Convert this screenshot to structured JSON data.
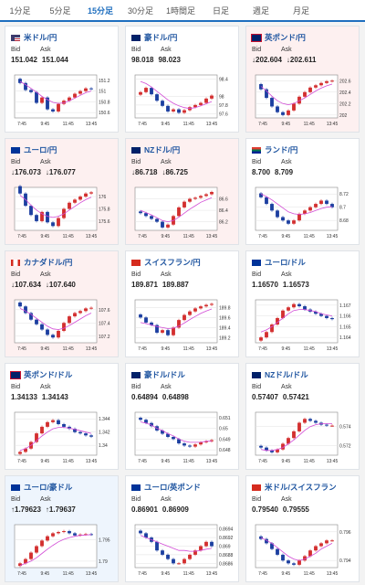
{
  "tabs": [
    {
      "label": "1分足",
      "active": false
    },
    {
      "label": "5分足",
      "active": false
    },
    {
      "label": "15分足",
      "active": true
    },
    {
      "label": "30分足",
      "active": false
    },
    {
      "label": "1時間足",
      "active": false
    },
    {
      "label": "日足",
      "active": false
    },
    {
      "label": "週足",
      "active": false
    },
    {
      "label": "月足",
      "active": false
    }
  ],
  "labels": {
    "bid": "Bid",
    "ask": "Ask"
  },
  "colors": {
    "up": "#d32f2f",
    "down": "#1c3fa0",
    "ma": "#d24bd6",
    "accent": "#1f6fbf"
  },
  "pairs": [
    {
      "title": "米ドル/円",
      "flag": "us",
      "trend": "flat",
      "bid": "151.042",
      "ask": "151.044",
      "yticks": [
        "151.2",
        "151",
        "150.8",
        "150.6"
      ],
      "ylim": [
        150.5,
        151.3
      ],
      "xticks": [
        "7:45",
        "9:45",
        "11:45",
        "13:45"
      ],
      "closes": [
        151.15,
        151.02,
        150.98,
        150.78,
        150.88,
        150.66,
        150.62,
        150.76,
        150.82,
        150.88,
        150.95,
        151.0,
        151.05,
        151.04
      ],
      "ma": [
        151.18,
        151.12,
        151.05,
        150.98,
        150.9,
        150.84,
        150.79,
        150.77,
        150.78,
        150.82,
        150.87,
        150.92,
        150.97,
        151.0
      ]
    },
    {
      "title": "豪ドル/円",
      "flag": "au",
      "trend": "flat",
      "bid": "98.018",
      "ask": "98.023",
      "yticks": [
        "98.4",
        "98",
        "97.8",
        "97.6"
      ],
      "ylim": [
        97.5,
        98.5
      ],
      "xticks": [
        "7:45",
        "9:45",
        "11:45",
        "13:45"
      ],
      "closes": [
        98.1,
        98.2,
        98.05,
        97.9,
        97.78,
        97.65,
        97.7,
        97.62,
        97.68,
        97.75,
        97.8,
        97.85,
        97.95,
        98.02
      ],
      "ma": [
        98.35,
        98.3,
        98.22,
        98.12,
        98.02,
        97.92,
        97.84,
        97.78,
        97.74,
        97.72,
        97.74,
        97.78,
        97.83,
        97.88
      ]
    },
    {
      "title": "英ポンド/円",
      "flag": "uk",
      "trend": "down",
      "bid": "↓202.604",
      "ask": "↓202.611",
      "yticks": [
        "202.6",
        "202.4",
        "202.2",
        "202"
      ],
      "ylim": [
        201.95,
        202.7
      ],
      "xticks": [
        "7:45",
        "9:45",
        "11:45",
        "13:45"
      ],
      "closes": [
        202.45,
        202.3,
        202.15,
        202.05,
        202.0,
        202.08,
        202.2,
        202.32,
        202.4,
        202.48,
        202.52,
        202.56,
        202.59,
        202.6
      ],
      "ma": [
        202.5,
        202.42,
        202.33,
        202.25,
        202.2,
        202.18,
        202.2,
        202.25,
        202.3,
        202.36,
        202.42,
        202.47,
        202.51,
        202.54
      ]
    },
    {
      "title": "ユーロ/円",
      "flag": "eu",
      "trend": "down",
      "bid": "↓176.073",
      "ask": "↓176.077",
      "yticks": [
        "176",
        "175.8",
        "175.6"
      ],
      "ylim": [
        175.45,
        176.15
      ],
      "xticks": [
        "7:45",
        "9:45",
        "11:45",
        "13:45"
      ],
      "closes": [
        176.05,
        175.85,
        175.7,
        175.6,
        175.75,
        175.58,
        175.52,
        175.65,
        175.8,
        175.9,
        175.95,
        176.0,
        176.05,
        176.07
      ],
      "ma": [
        176.02,
        175.95,
        175.86,
        175.78,
        175.72,
        175.68,
        175.66,
        175.68,
        175.72,
        175.78,
        175.84,
        175.9,
        175.95,
        175.99
      ]
    },
    {
      "title": "NZドル/円",
      "flag": "nz",
      "trend": "down",
      "bid": "↓86.718",
      "ask": "↓86.725",
      "yticks": [
        "86.6",
        "86.4",
        "86.2"
      ],
      "ylim": [
        86.05,
        86.8
      ],
      "xticks": [
        "7:45",
        "9:45",
        "11:45",
        "13:45"
      ],
      "closes": [
        86.35,
        86.3,
        86.25,
        86.2,
        86.1,
        86.15,
        86.3,
        86.45,
        86.55,
        86.6,
        86.62,
        86.65,
        86.68,
        86.72
      ],
      "ma": [
        86.4,
        86.36,
        86.32,
        86.27,
        86.22,
        86.2,
        86.22,
        86.28,
        86.35,
        86.42,
        86.48,
        86.54,
        86.58,
        86.62
      ]
    },
    {
      "title": "ランド/円",
      "flag": "za",
      "trend": "flat",
      "bid": "8.700",
      "ask": "8.709",
      "yticks": [
        "8.72",
        "8.7",
        "8.68"
      ],
      "ylim": [
        8.665,
        8.73
      ],
      "xticks": [
        "7:45",
        "9:45",
        "11:45",
        "13:45"
      ],
      "closes": [
        8.715,
        8.705,
        8.695,
        8.685,
        8.68,
        8.675,
        8.68,
        8.69,
        8.695,
        8.7,
        8.705,
        8.71,
        8.705,
        8.7
      ],
      "ma": [
        8.72,
        8.716,
        8.711,
        8.705,
        8.699,
        8.693,
        8.69,
        8.689,
        8.69,
        8.692,
        8.695,
        8.698,
        8.7,
        8.701
      ]
    },
    {
      "title": "カナダドル/円",
      "flag": "ca",
      "trend": "down",
      "bid": "↓107.634",
      "ask": "↓107.640",
      "yticks": [
        "107.6",
        "107.4",
        "107.2"
      ],
      "ylim": [
        107.1,
        107.75
      ],
      "xticks": [
        "7:45",
        "9:45",
        "11:45",
        "13:45"
      ],
      "closes": [
        107.65,
        107.55,
        107.45,
        107.38,
        107.3,
        107.22,
        107.18,
        107.28,
        107.4,
        107.5,
        107.55,
        107.58,
        107.62,
        107.63
      ],
      "ma": [
        107.62,
        107.58,
        107.53,
        107.47,
        107.41,
        107.35,
        107.31,
        107.3,
        107.32,
        107.36,
        107.41,
        107.46,
        107.51,
        107.55
      ]
    },
    {
      "title": "スイスフラン/円",
      "flag": "ch",
      "trend": "flat",
      "bid": "189.871",
      "ask": "189.887",
      "yticks": [
        "189.8",
        "189.6",
        "189.4",
        "189.2"
      ],
      "ylim": [
        189.1,
        189.95
      ],
      "xticks": [
        "7:45",
        "9:45",
        "11:45",
        "13:45"
      ],
      "closes": [
        189.6,
        189.5,
        189.45,
        189.3,
        189.35,
        189.25,
        189.4,
        189.55,
        189.65,
        189.72,
        189.78,
        189.82,
        189.85,
        189.87
      ],
      "ma": [
        189.5,
        189.48,
        189.45,
        189.42,
        189.4,
        189.38,
        189.39,
        189.43,
        189.49,
        189.56,
        189.62,
        189.68,
        189.73,
        189.77
      ]
    },
    {
      "title": "ユーロ/ドル",
      "flag": "eu",
      "trend": "flat",
      "bid": "1.16570",
      "ask": "1.16573",
      "yticks": [
        "1.167",
        "1.166",
        "1.165",
        "1.164"
      ],
      "ylim": [
        1.1635,
        1.1675
      ],
      "xticks": [
        "7:45",
        "9:45",
        "11:45",
        "13:45"
      ],
      "closes": [
        1.164,
        1.1645,
        1.1652,
        1.1658,
        1.1665,
        1.1668,
        1.1671,
        1.1669,
        1.1666,
        1.1664,
        1.1662,
        1.166,
        1.1658,
        1.1657
      ],
      "ma": [
        1.1645,
        1.1647,
        1.165,
        1.1654,
        1.1658,
        1.1662,
        1.1665,
        1.1666,
        1.1666,
        1.1665,
        1.1664,
        1.1662,
        1.1661,
        1.166
      ]
    },
    {
      "title": "英ポンド/ドル",
      "flag": "uk",
      "trend": "flat",
      "bid": "1.34133",
      "ask": "1.34143",
      "yticks": [
        "1.344",
        "1.342",
        "1.34"
      ],
      "ylim": [
        1.3385,
        1.345
      ],
      "xticks": [
        "7:45",
        "9:45",
        "11:45",
        "13:45"
      ],
      "closes": [
        1.339,
        1.3395,
        1.3405,
        1.3418,
        1.3428,
        1.3435,
        1.3438,
        1.3432,
        1.3428,
        1.3425,
        1.342,
        1.3418,
        1.3415,
        1.3413
      ],
      "ma": [
        1.3392,
        1.3395,
        1.34,
        1.3407,
        1.3414,
        1.342,
        1.3425,
        1.3427,
        1.3427,
        1.3426,
        1.3424,
        1.3422,
        1.342,
        1.3418
      ]
    },
    {
      "title": "豪ドル/ドル",
      "flag": "au",
      "trend": "flat",
      "bid": "0.64894",
      "ask": "0.64898",
      "yticks": [
        "0.651",
        "0.65",
        "0.649",
        "0.648"
      ],
      "ylim": [
        0.6475,
        0.6515
      ],
      "xticks": [
        "7:45",
        "9:45",
        "11:45",
        "13:45"
      ],
      "closes": [
        0.6508,
        0.6505,
        0.6502,
        0.6498,
        0.6495,
        0.6492,
        0.649,
        0.6486,
        0.6484,
        0.6483,
        0.6485,
        0.6487,
        0.6488,
        0.6489
      ],
      "ma": [
        0.6506,
        0.6505,
        0.6503,
        0.65,
        0.6498,
        0.6495,
        0.6493,
        0.649,
        0.6488,
        0.6487,
        0.6487,
        0.6487,
        0.6488,
        0.6488
      ]
    },
    {
      "title": "NZドル/ドル",
      "flag": "nz",
      "trend": "flat",
      "bid": "0.57407",
      "ask": "0.57421",
      "yticks": [
        "0.574",
        "0.572"
      ],
      "ylim": [
        0.571,
        0.5755
      ],
      "xticks": [
        "7:45",
        "9:45",
        "11:45",
        "13:45"
      ],
      "closes": [
        0.5718,
        0.5715,
        0.5713,
        0.5716,
        0.5722,
        0.5728,
        0.5735,
        0.5744,
        0.5748,
        0.5746,
        0.5744,
        0.5742,
        0.5741,
        0.5741
      ],
      "ma": [
        0.5716,
        0.5715,
        0.5715,
        0.5716,
        0.5718,
        0.5722,
        0.5726,
        0.5731,
        0.5736,
        0.574,
        0.5742,
        0.5743,
        0.5743,
        0.5743
      ]
    },
    {
      "title": "ユーロ/豪ドル",
      "flag": "eu",
      "trend": "up",
      "bid": "↑1.79623",
      "ask": "↑1.79637",
      "yticks": [
        "1.795",
        "1.79"
      ],
      "ylim": [
        1.7885,
        1.7985
      ],
      "xticks": [
        "7:45",
        "9:45",
        "11:45",
        "13:45"
      ],
      "closes": [
        1.7895,
        1.7905,
        1.792,
        1.7935,
        1.7948,
        1.7958,
        1.7965,
        1.7968,
        1.797,
        1.7965,
        1.796,
        1.7962,
        1.7963,
        1.7962
      ],
      "ma": [
        1.789,
        1.7895,
        1.79,
        1.7908,
        1.7918,
        1.7928,
        1.7937,
        1.7945,
        1.7951,
        1.7955,
        1.7958,
        1.796,
        1.7961,
        1.7962
      ]
    },
    {
      "title": "ユーロ/英ポンド",
      "flag": "eu",
      "trend": "flat",
      "bid": "0.86901",
      "ask": "0.86909",
      "yticks": [
        "0.8694",
        "0.8692",
        "0.869",
        "0.8688",
        "0.8686"
      ],
      "ylim": [
        0.8685,
        0.8695
      ],
      "xticks": [
        "7:45",
        "9:45",
        "11:45",
        "13:45"
      ],
      "closes": [
        0.8693,
        0.8692,
        0.8691,
        0.8689,
        0.8688,
        0.8687,
        0.8686,
        0.8686,
        0.8687,
        0.8688,
        0.8689,
        0.869,
        0.8691,
        0.869
      ],
      "ma": [
        0.86925,
        0.8692,
        0.86915,
        0.8691,
        0.86905,
        0.869,
        0.86895,
        0.8689,
        0.8689,
        0.86888,
        0.86888,
        0.8689,
        0.86893,
        0.86895
      ]
    },
    {
      "title": "米ドル/スイスフラン",
      "flag": "ch",
      "trend": "flat",
      "bid": "0.79540",
      "ask": "0.79555",
      "yticks": [
        "0.796",
        "0.794"
      ],
      "ylim": [
        0.7935,
        0.7965
      ],
      "xticks": [
        "7:45",
        "9:45",
        "11:45",
        "13:45"
      ],
      "closes": [
        0.7955,
        0.7952,
        0.7948,
        0.7944,
        0.794,
        0.7938,
        0.7937,
        0.794,
        0.7943,
        0.7947,
        0.795,
        0.7952,
        0.7954,
        0.7954
      ],
      "ma": [
        0.7956,
        0.7954,
        0.7952,
        0.7949,
        0.7946,
        0.7943,
        0.7941,
        0.794,
        0.7941,
        0.7943,
        0.7945,
        0.7948,
        0.795,
        0.7952
      ]
    }
  ]
}
